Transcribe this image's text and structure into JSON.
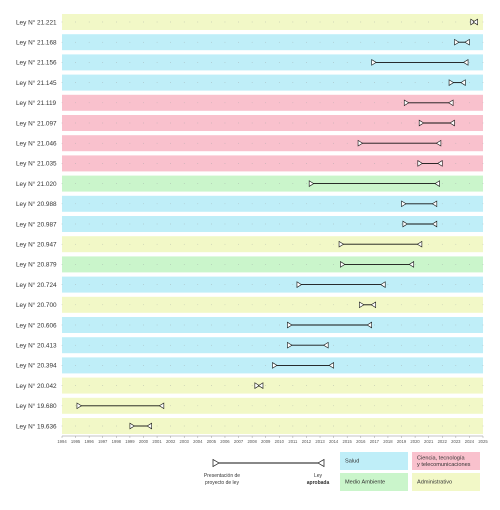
{
  "chart_data": {
    "type": "range-timeline",
    "title": "",
    "xlabel": "",
    "ylabel": "",
    "xlim": [
      1994,
      2025
    ],
    "x_ticks": [
      1994,
      1995,
      1996,
      1997,
      1998,
      1999,
      2000,
      2001,
      2002,
      2003,
      2004,
      2005,
      2006,
      2007,
      2008,
      2009,
      2010,
      2011,
      2012,
      2013,
      2014,
      2015,
      2016,
      2017,
      2018,
      2019,
      2020,
      2021,
      2022,
      2023,
      2024,
      2025
    ],
    "categories": {
      "salud": {
        "label": "Salud",
        "color": "#bfeef8"
      },
      "ciencia": {
        "label": "Ciencia, tecnología y telecomunicaciones",
        "label_lines": [
          "Ciencia, tecnología",
          "y telecomunicaciones"
        ],
        "color": "#f9c1cd"
      },
      "medio_ambiente": {
        "label": "Medio Ambiente",
        "color": "#caf5cb"
      },
      "administrativo": {
        "label": "Administrativo",
        "color": "#f2f8c7"
      }
    },
    "laws": [
      {
        "label": "Ley N° 21.221",
        "category": "administrativo",
        "start": 2024.1,
        "end": 2024.6
      },
      {
        "label": "Ley N° 21.168",
        "category": "salud",
        "start": 2022.9,
        "end": 2024.0
      },
      {
        "label": "Ley N° 21.156",
        "category": "salud",
        "start": 2016.8,
        "end": 2023.9
      },
      {
        "label": "Ley N° 21.145",
        "category": "salud",
        "start": 2022.5,
        "end": 2023.7
      },
      {
        "label": "Ley N° 21.119",
        "category": "ciencia",
        "start": 2019.2,
        "end": 2022.8
      },
      {
        "label": "Ley N° 21.097",
        "category": "ciencia",
        "start": 2020.3,
        "end": 2022.9
      },
      {
        "label": "Ley N° 21.046",
        "category": "ciencia",
        "start": 2015.8,
        "end": 2021.9
      },
      {
        "label": "Ley N° 21.035",
        "category": "ciencia",
        "start": 2020.2,
        "end": 2022.0
      },
      {
        "label": "Ley N° 21.020",
        "category": "medio_ambiente",
        "start": 2012.2,
        "end": 2021.8
      },
      {
        "label": "Ley N° 20.988",
        "category": "salud",
        "start": 2019.0,
        "end": 2021.6
      },
      {
        "label": "Ley N° 20.987",
        "category": "salud",
        "start": 2019.1,
        "end": 2021.6
      },
      {
        "label": "Ley N° 20.947",
        "category": "administrativo",
        "start": 2014.4,
        "end": 2020.5
      },
      {
        "label": "Ley N° 20.879",
        "category": "medio_ambiente",
        "start": 2014.5,
        "end": 2019.9
      },
      {
        "label": "Ley N° 20.724",
        "category": "salud",
        "start": 2011.3,
        "end": 2017.8
      },
      {
        "label": "Ley N° 20.700",
        "category": "administrativo",
        "start": 2015.9,
        "end": 2017.1
      },
      {
        "label": "Ley N° 20.606",
        "category": "salud",
        "start": 2010.6,
        "end": 2016.8
      },
      {
        "label": "Ley N° 20.413",
        "category": "salud",
        "start": 2010.6,
        "end": 2013.6
      },
      {
        "label": "Ley N° 20.394",
        "category": "salud",
        "start": 2009.5,
        "end": 2014.0
      },
      {
        "label": "Ley N° 20.042",
        "category": "administrativo",
        "start": 2008.2,
        "end": 2008.8
      },
      {
        "label": "Ley N° 19.680",
        "category": "administrativo",
        "start": 1995.1,
        "end": 2001.5
      },
      {
        "label": "Ley N° 19.636",
        "category": "administrativo",
        "start": 1999.0,
        "end": 2000.6
      }
    ]
  },
  "legend": {
    "start_label": [
      "Presentación de",
      "proyecto de ley"
    ],
    "end_label": [
      "Ley",
      "aprobada"
    ]
  }
}
